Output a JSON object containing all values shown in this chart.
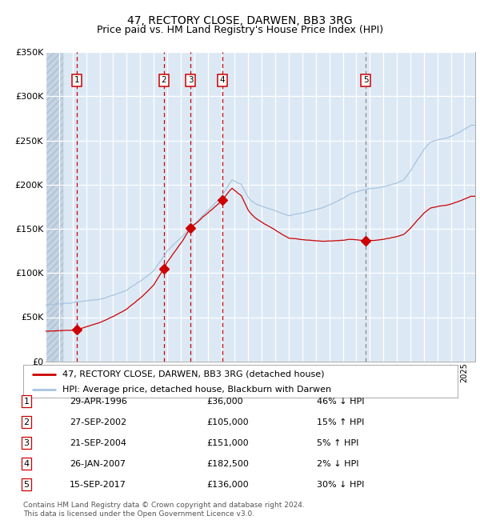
{
  "title": "47, RECTORY CLOSE, DARWEN, BB3 3RG",
  "subtitle": "Price paid vs. HM Land Registry's House Price Index (HPI)",
  "ylim": [
    0,
    350000
  ],
  "yticks": [
    0,
    50000,
    100000,
    150000,
    200000,
    250000,
    300000,
    350000
  ],
  "ytick_labels": [
    "£0",
    "£50K",
    "£100K",
    "£150K",
    "£200K",
    "£250K",
    "£300K",
    "£350K"
  ],
  "xlim_start": 1994.0,
  "xlim_end": 2025.8,
  "plot_bg_color": "#dce9f5",
  "grid_color": "#ffffff",
  "hpi_line_color": "#a8c4e0",
  "price_line_color": "#cc0000",
  "dot_color": "#cc0000",
  "vline_color_red": "#cc0000",
  "vline_color_gray": "#888888",
  "sale_dates_decimal": [
    1996.33,
    2002.74,
    2004.72,
    2007.07,
    2017.71
  ],
  "sale_prices": [
    36000,
    105000,
    151000,
    182500,
    136000
  ],
  "sale_labels": [
    "1",
    "2",
    "3",
    "4",
    "5"
  ],
  "sale_vline_styles": [
    "red",
    "red",
    "red",
    "red",
    "gray"
  ],
  "legend_price_label": "47, RECTORY CLOSE, DARWEN, BB3 3RG (detached house)",
  "legend_hpi_label": "HPI: Average price, detached house, Blackburn with Darwen",
  "table_rows": [
    [
      "1",
      "29-APR-1996",
      "£36,000",
      "46% ↓ HPI"
    ],
    [
      "2",
      "27-SEP-2002",
      "£105,000",
      "15% ↑ HPI"
    ],
    [
      "3",
      "21-SEP-2004",
      "£151,000",
      "5% ↑ HPI"
    ],
    [
      "4",
      "26-JAN-2007",
      "£182,500",
      "2% ↓ HPI"
    ],
    [
      "5",
      "15-SEP-2017",
      "£136,000",
      "30% ↓ HPI"
    ]
  ],
  "footer": "Contains HM Land Registry data © Crown copyright and database right 2024.\nThis data is licensed under the Open Government Licence v3.0.",
  "title_fontsize": 10,
  "subtitle_fontsize": 9
}
